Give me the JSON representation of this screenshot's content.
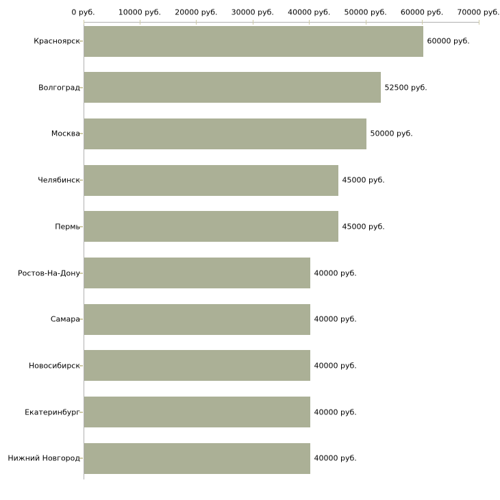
{
  "chart_data": {
    "type": "bar",
    "orientation": "horizontal",
    "title": "",
    "categories": [
      "Красноярск",
      "Волгоград",
      "Москва",
      "Челябинск",
      "Пермь",
      "Ростов-На-Дону",
      "Самара",
      "Новосибирск",
      "Екатеринбург",
      "Нижний Новгород"
    ],
    "values": [
      60000,
      52500,
      50000,
      45000,
      45000,
      40000,
      40000,
      40000,
      40000,
      40000
    ],
    "value_labels": [
      "60000 руб.",
      "52500 руб.",
      "50000 руб.",
      "45000 руб.",
      "45000 руб.",
      "40000 руб.",
      "40000 руб.",
      "40000 руб.",
      "40000 руб.",
      "40000 руб."
    ],
    "x_axis": {
      "position": "top",
      "ticks": [
        0,
        10000,
        20000,
        30000,
        40000,
        50000,
        60000,
        70000
      ],
      "tick_labels": [
        "0 руб.",
        "10000 руб.",
        "20000 руб.",
        "30000 руб.",
        "40000 руб.",
        "50000 руб.",
        "60000 руб.",
        "70000 руб."
      ],
      "lim": [
        0,
        70000
      ]
    },
    "grid": false,
    "legend": null,
    "colors": {
      "bar": "#abb096",
      "axis_line": "#b0b0b0",
      "tick": "#cdc9a5",
      "text": "#000000",
      "background": "#ffffff"
    }
  }
}
